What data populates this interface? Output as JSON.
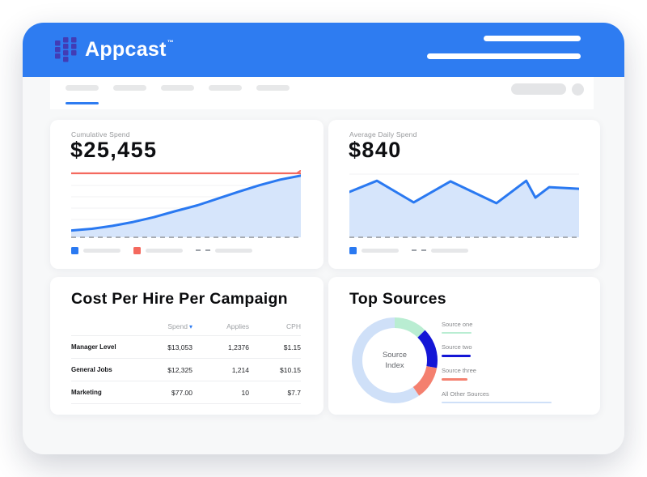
{
  "brand": {
    "header_blue": "#2E7CF1",
    "logo_dot_color": "#423CB5",
    "accent_red": "#F4695E",
    "accent_blue": "#2A79F1"
  },
  "header": {
    "logo_text": "Appcast",
    "trademark": "™"
  },
  "cards": {
    "cumulative": {
      "label": "Cumulative Spend",
      "value": "$25,455"
    },
    "daily": {
      "label": "Average Daily Spend",
      "value": "$840"
    },
    "cph": {
      "title": "Cost Per Hire Per Campaign",
      "columns": [
        "",
        "Spend",
        "Applies",
        "CPH"
      ],
      "sort_indicator": "▾",
      "sorted_by": "Spend",
      "rows": [
        [
          "Manager Level",
          "$13,053",
          "1,2376",
          "$1.15"
        ],
        [
          "General Jobs",
          "$12,325",
          "1,214",
          "$10.15"
        ],
        [
          "Marketing",
          "$77.00",
          "10",
          "$7.7"
        ]
      ]
    },
    "top_sources": {
      "title": "Top Sources",
      "center_line1": "Source",
      "center_line2": "Index"
    }
  },
  "chart_data": [
    {
      "id": "cumulative",
      "type": "area",
      "title": "Cumulative Spend",
      "total_label": "$25,455",
      "x_pct": [
        0,
        9,
        18,
        27,
        36,
        45,
        55,
        64,
        73,
        82,
        91,
        100
      ],
      "values": [
        2800,
        3500,
        4700,
        6300,
        8300,
        10700,
        13200,
        16000,
        18800,
        21500,
        23800,
        25455
      ],
      "ylim": [
        0,
        26400
      ],
      "budget_line": 26400,
      "line_color": "#2A79F1",
      "fill_color": "#D6E5FB",
      "budget_color": "#F4695E",
      "baseline": "dashed",
      "grid": true,
      "legend": [
        "solid-blue",
        "solid-red",
        "dashed-gray"
      ]
    },
    {
      "id": "daily",
      "type": "area",
      "title": "Average Daily Spend",
      "average_label": "$840",
      "x_pct": [
        0,
        12,
        28,
        44,
        64,
        77,
        81,
        87,
        100
      ],
      "values": [
        850,
        1060,
        655,
        1050,
        640,
        1060,
        745,
        940,
        910
      ],
      "ylim": [
        0,
        1200
      ],
      "line_color": "#2A79F1",
      "fill_color": "#D6E5FB",
      "baseline": "dashed",
      "grid": true,
      "legend": [
        "solid-blue",
        "dashed-gray"
      ]
    },
    {
      "id": "top-sources",
      "type": "donut",
      "title": "Top Sources",
      "center_label": "Source Index",
      "segments": [
        {
          "label": "Source one",
          "pct": 12.5,
          "color": "#B9EDD2",
          "legend_bar": {
            "w": 37,
            "h": 2
          }
        },
        {
          "label": "Source two",
          "pct": 15.3,
          "color": "#1416D6",
          "legend_bar": {
            "w": 36,
            "h": 3
          }
        },
        {
          "label": "Source three",
          "pct": 12.5,
          "color": "#F4806F",
          "legend_bar": {
            "w": 32,
            "h": 3
          }
        },
        {
          "label": "All Other Sources",
          "pct": 59.7,
          "color": "#CFE0F8",
          "legend_bar": {
            "w": 136,
            "h": 2
          }
        }
      ]
    }
  ]
}
